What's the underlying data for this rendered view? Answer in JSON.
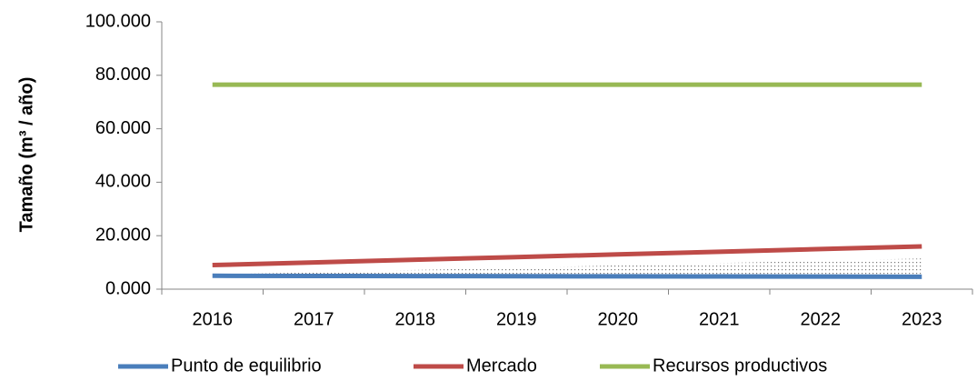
{
  "chart_data": {
    "type": "line",
    "ylabel": "Tamaño (m³ / año)",
    "categories": [
      "2016",
      "2017",
      "2018",
      "2019",
      "2020",
      "2021",
      "2022",
      "2023"
    ],
    "series": [
      {
        "name": "Punto de equilibrio",
        "color": "#4a7ebb",
        "values": [
          5000,
          4950,
          4900,
          4850,
          4800,
          4750,
          4700,
          4650
        ]
      },
      {
        "name": "Mercado",
        "color": "#be4b48",
        "values": [
          9000,
          10000,
          11000,
          12000,
          13000,
          14000,
          15000,
          16000
        ]
      },
      {
        "name": "Recursos productivos",
        "color": "#98b954",
        "values": [
          76500,
          76500,
          76500,
          76500,
          76500,
          76500,
          76500,
          76500
        ]
      }
    ],
    "area": {
      "values": [
        5500,
        6300,
        7200,
        8000,
        8900,
        9800,
        10600,
        11500
      ]
    },
    "ylim": [
      0,
      100000
    ],
    "yticks": [
      {
        "value": 0,
        "label": "0.000"
      },
      {
        "value": 20000,
        "label": "20.000"
      },
      {
        "value": 40000,
        "label": "40.000"
      },
      {
        "value": 60000,
        "label": "60.000"
      },
      {
        "value": 80000,
        "label": "80.000"
      },
      {
        "value": 100000,
        "label": "100.000"
      }
    ],
    "grid": false,
    "legend": "bottom"
  }
}
